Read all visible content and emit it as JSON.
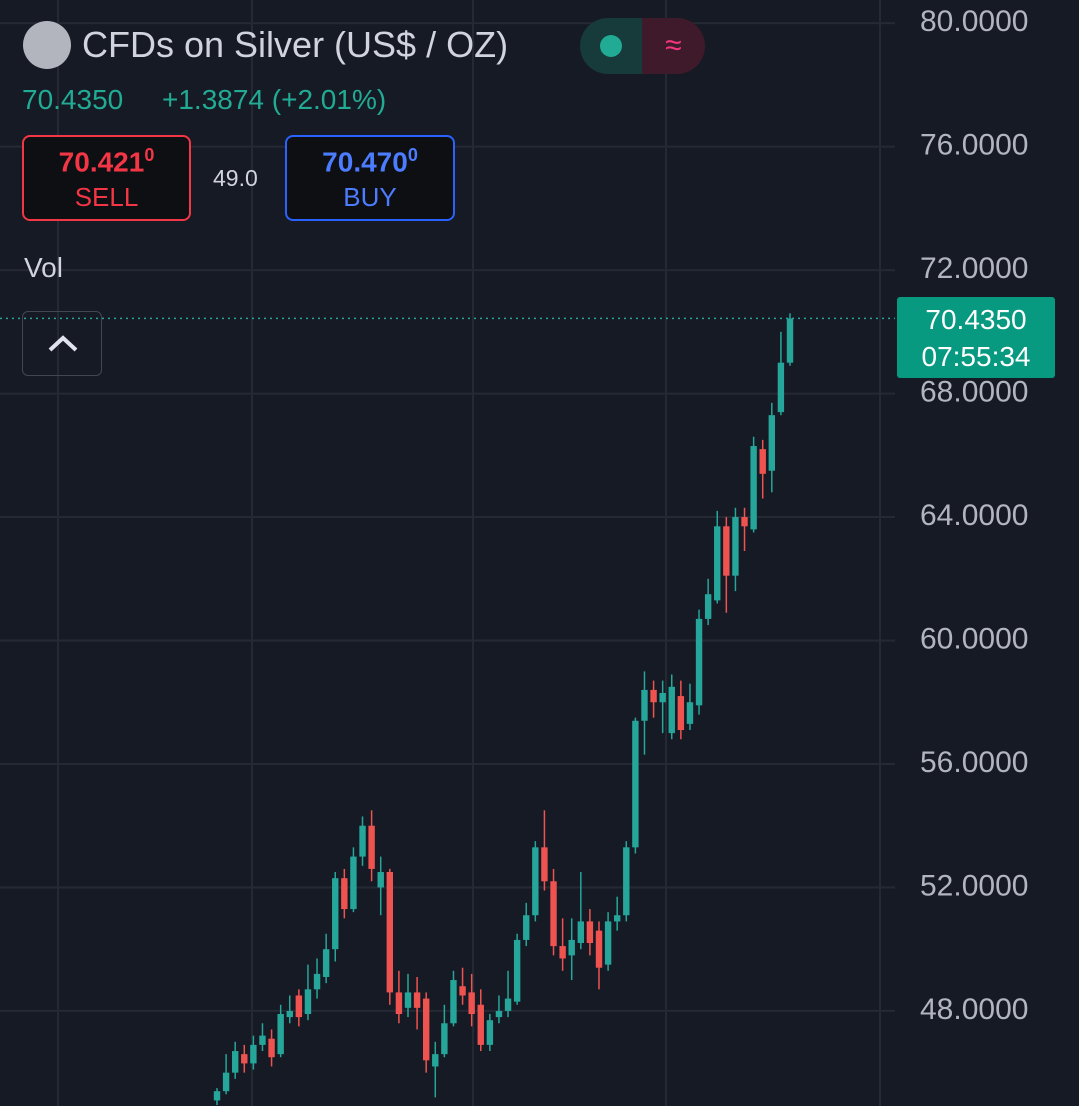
{
  "chart_data": {
    "type": "candlestick",
    "title": "CFDs on Silver (US$ / OZ)",
    "price": "70.4350",
    "change": "+1.3874 (+2.01%)",
    "sell": "70.421",
    "sell_super": "0",
    "sell_label": "SELL",
    "spread": "49.0",
    "buy": "70.470",
    "buy_super": "0",
    "buy_label": "BUY",
    "volume_label": "Vol",
    "countdown": "07:55:34",
    "last_price": {
      "value": 70.435,
      "label": "70.4350"
    },
    "up_color": "#26a69a",
    "down_color": "#ef5350",
    "grid": true,
    "ylim": [
      44.92,
      80.75
    ],
    "yticks": [
      {
        "value": 48,
        "label": "48.0000"
      },
      {
        "value": 52,
        "label": "52.0000"
      },
      {
        "value": 56,
        "label": "56.0000"
      },
      {
        "value": 60,
        "label": "60.0000"
      },
      {
        "value": 64,
        "label": "64.0000"
      },
      {
        "value": 68,
        "label": "68.0000"
      },
      {
        "value": 72,
        "label": "72.0000"
      },
      {
        "value": 76,
        "label": "76.0000"
      },
      {
        "value": 80,
        "label": "80.0000"
      }
    ],
    "open": [
      45.1,
      45.4,
      46.0,
      46.6,
      46.3,
      46.9,
      47.1,
      46.6,
      47.8,
      48.5,
      47.9,
      48.7,
      49.1,
      50.0,
      52.3,
      51.3,
      53.0,
      54.0,
      52.0,
      52.5,
      48.6,
      48.1,
      48.6,
      48.4,
      46.2,
      46.6,
      47.6,
      48.8,
      48.6,
      48.2,
      46.9,
      47.8,
      48.0,
      48.3,
      50.3,
      51.1,
      53.3,
      52.2,
      50.1,
      49.8,
      50.2,
      50.9,
      50.6,
      49.5,
      50.9,
      51.1,
      53.3,
      57.4,
      58.4,
      58.0,
      57.0,
      58.2,
      57.3,
      57.9,
      60.7,
      61.3,
      63.7,
      62.1,
      64.0,
      63.6,
      66.2,
      65.5,
      67.4,
      69.0
    ],
    "high": [
      45.5,
      46.6,
      47.0,
      46.9,
      47.2,
      47.6,
      47.4,
      48.2,
      48.5,
      48.7,
      49.5,
      49.7,
      50.5,
      52.5,
      52.6,
      53.3,
      54.3,
      54.5,
      53.0,
      52.6,
      49.3,
      49.2,
      49.1,
      48.6,
      47.0,
      48.2,
      49.3,
      49.4,
      49.2,
      48.7,
      47.9,
      48.5,
      49.3,
      50.5,
      51.5,
      53.5,
      54.5,
      52.6,
      51.0,
      51.0,
      52.5,
      51.3,
      50.9,
      51.2,
      51.7,
      53.5,
      57.5,
      59.0,
      58.7,
      58.7,
      58.9,
      58.7,
      58.6,
      61.0,
      62.0,
      64.2,
      64.0,
      64.3,
      64.3,
      66.6,
      66.5,
      67.7,
      70.0,
      70.6
    ],
    "low": [
      44.95,
      45.3,
      45.8,
      46.0,
      46.1,
      46.7,
      46.2,
      46.5,
      47.6,
      47.5,
      47.7,
      48.4,
      48.9,
      49.6,
      51.0,
      51.2,
      52.7,
      52.2,
      51.1,
      48.2,
      47.6,
      47.8,
      47.4,
      46.0,
      45.2,
      46.5,
      47.5,
      48.2,
      47.5,
      46.7,
      46.7,
      47.6,
      47.8,
      48.2,
      50.1,
      50.9,
      51.9,
      49.8,
      49.3,
      49.0,
      50.0,
      49.8,
      48.7,
      49.3,
      50.6,
      50.9,
      53.1,
      56.3,
      57.5,
      57.0,
      56.8,
      56.8,
      57.1,
      57.6,
      60.5,
      61.2,
      60.9,
      61.6,
      62.9,
      63.5,
      64.6,
      64.8,
      67.3,
      68.9
    ],
    "close": [
      45.4,
      46.0,
      46.7,
      46.3,
      46.9,
      47.2,
      46.5,
      47.9,
      48.0,
      47.8,
      48.7,
      49.2,
      50.0,
      52.3,
      51.3,
      53.0,
      54.0,
      52.6,
      52.5,
      48.6,
      47.9,
      48.6,
      48.1,
      46.4,
      46.6,
      47.6,
      49.0,
      48.5,
      47.9,
      46.9,
      47.7,
      48.0,
      48.4,
      50.3,
      51.1,
      53.3,
      52.2,
      50.1,
      49.7,
      50.3,
      50.9,
      50.2,
      49.4,
      50.9,
      51.1,
      53.3,
      57.4,
      58.4,
      58.0,
      58.3,
      58.5,
      57.1,
      58.0,
      60.7,
      61.5,
      63.7,
      62.1,
      64.0,
      63.7,
      66.3,
      65.4,
      67.3,
      69.0,
      70.435
    ]
  }
}
